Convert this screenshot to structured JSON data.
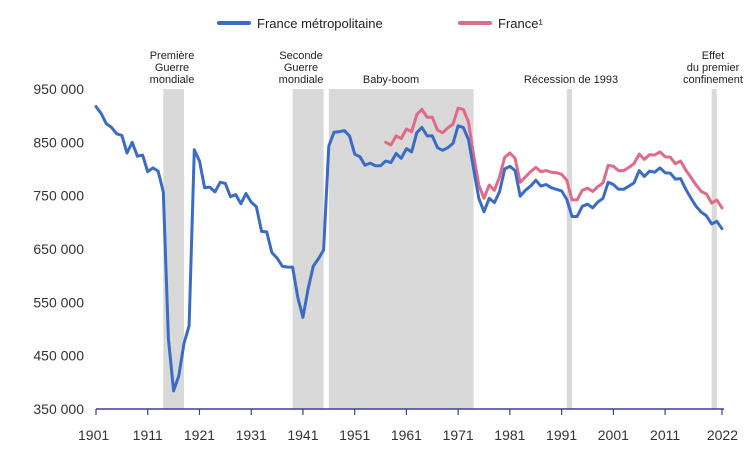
{
  "chart_data": {
    "type": "line",
    "title": "",
    "xlabel": "",
    "ylabel": "",
    "xlim": [
      1901,
      2022
    ],
    "ylim": [
      350000,
      950000
    ],
    "y_ticks": [
      350000,
      450000,
      550000,
      650000,
      750000,
      850000,
      950000
    ],
    "y_tick_labels": [
      "350 000",
      "450 000",
      "550 000",
      "650 000",
      "750 000",
      "850 000",
      "950 000"
    ],
    "x_ticks": [
      1901,
      1911,
      1921,
      1931,
      1941,
      1951,
      1961,
      1971,
      1981,
      1991,
      2001,
      2011,
      2022
    ],
    "x_tick_labels": [
      "1901",
      "1911",
      "1921",
      "1931",
      "1941",
      "1951",
      "1961",
      "1971",
      "1981",
      "1991",
      "2001",
      "2011",
      "2022"
    ],
    "grid": false,
    "legend_position": "top-center",
    "colors": {
      "metro": "#3a6cc6",
      "france": "#e06a87",
      "band": "#d9d9d9",
      "axis": "#3f3f8f"
    },
    "bands": [
      {
        "start": 1914,
        "end": 1918,
        "label_lines": [
          "Première",
          "Guerre",
          "mondiale"
        ]
      },
      {
        "start": 1939,
        "end": 1945,
        "label_lines": [
          "Seconde",
          "Guerre",
          "mondiale"
        ]
      },
      {
        "start": 1946,
        "end": 1974,
        "label_lines": [
          "Baby-boom"
        ]
      },
      {
        "start": 1992,
        "end": 1993,
        "label_lines": [
          "Récession de 1993"
        ]
      },
      {
        "start": 2020,
        "end": 2021,
        "label_lines": [
          "Effet",
          "du premier",
          "confinement"
        ]
      }
    ],
    "series": [
      {
        "name": "France métropolitaine",
        "x": [
          1901,
          1902,
          1903,
          1904,
          1905,
          1906,
          1907,
          1908,
          1909,
          1910,
          1911,
          1912,
          1913,
          1914,
          1915,
          1916,
          1917,
          1918,
          1919,
          1920,
          1921,
          1922,
          1923,
          1924,
          1925,
          1926,
          1927,
          1928,
          1929,
          1930,
          1931,
          1932,
          1933,
          1934,
          1935,
          1936,
          1937,
          1938,
          1939,
          1940,
          1941,
          1942,
          1943,
          1944,
          1945,
          1946,
          1947,
          1948,
          1949,
          1950,
          1951,
          1952,
          1953,
          1954,
          1955,
          1956,
          1957,
          1958,
          1959,
          1960,
          1961,
          1962,
          1963,
          1964,
          1965,
          1966,
          1967,
          1968,
          1969,
          1970,
          1971,
          1972,
          1973,
          1974,
          1975,
          1976,
          1977,
          1978,
          1979,
          1980,
          1981,
          1982,
          1983,
          1984,
          1985,
          1986,
          1987,
          1988,
          1989,
          1990,
          1991,
          1992,
          1993,
          1994,
          1995,
          1996,
          1997,
          1998,
          1999,
          2000,
          2001,
          2002,
          2003,
          2004,
          2005,
          2006,
          2007,
          2008,
          2009,
          2010,
          2011,
          2012,
          2013,
          2014,
          2015,
          2016,
          2017,
          2018,
          2019,
          2020,
          2021,
          2022
        ],
        "values": [
          917000,
          904000,
          885000,
          878000,
          866000,
          863000,
          830000,
          850000,
          824000,
          826000,
          795000,
          802000,
          796000,
          757000,
          482000,
          384000,
          412000,
          473000,
          506000,
          836000,
          815000,
          765000,
          766000,
          757000,
          775000,
          773000,
          748000,
          752000,
          735000,
          754000,
          738000,
          729000,
          683000,
          682000,
          643000,
          633000,
          618000,
          616000,
          616000,
          559000,
          522000,
          575000,
          618000,
          632000,
          648000,
          843000,
          869000,
          870000,
          872000,
          862000,
          828000,
          823000,
          807000,
          811000,
          806000,
          806000,
          815000,
          812000,
          829000,
          820000,
          838000,
          832000,
          868000,
          878000,
          862000,
          862000,
          840000,
          835000,
          840000,
          848000,
          881000,
          878000,
          855000,
          799000,
          745000,
          720000,
          745000,
          737000,
          757000,
          800000,
          805000,
          797000,
          749000,
          760000,
          768000,
          779000,
          768000,
          771000,
          765000,
          762000,
          759000,
          743000,
          711000,
          711000,
          730000,
          734000,
          727000,
          738000,
          745000,
          775000,
          771000,
          762000,
          762000,
          768000,
          774000,
          797000,
          786000,
          796000,
          794000,
          802000,
          793000,
          792000,
          781000,
          782000,
          762000,
          745000,
          730000,
          719000,
          712000,
          697000,
          702000,
          688000
        ]
      },
      {
        "name": "France¹",
        "x": [
          1957,
          1958,
          1959,
          1960,
          1961,
          1962,
          1963,
          1964,
          1965,
          1966,
          1967,
          1968,
          1969,
          1970,
          1971,
          1972,
          1973,
          1974,
          1975,
          1976,
          1977,
          1978,
          1979,
          1980,
          1981,
          1982,
          1983,
          1984,
          1985,
          1986,
          1987,
          1988,
          1989,
          1990,
          1991,
          1992,
          1993,
          1994,
          1995,
          1996,
          1997,
          1998,
          1999,
          2000,
          2001,
          2002,
          2003,
          2004,
          2005,
          2006,
          2007,
          2008,
          2009,
          2010,
          2011,
          2012,
          2013,
          2014,
          2015,
          2016,
          2017,
          2018,
          2019,
          2020,
          2021,
          2022
        ],
        "values": [
          850000,
          845000,
          862000,
          857000,
          875000,
          870000,
          902000,
          912000,
          897000,
          897000,
          873000,
          868000,
          877000,
          884000,
          914000,
          912000,
          888000,
          825000,
          770000,
          745000,
          770000,
          760000,
          785000,
          822000,
          830000,
          820000,
          775000,
          785000,
          795000,
          803000,
          795000,
          797000,
          794000,
          793000,
          790000,
          779000,
          742000,
          742000,
          760000,
          764000,
          758000,
          767000,
          774000,
          807000,
          805000,
          797000,
          797000,
          803000,
          810000,
          828000,
          818000,
          827000,
          826000,
          832000,
          823000,
          822000,
          810000,
          815000,
          798000,
          784000,
          770000,
          758000,
          753000,
          736000,
          742000,
          727000
        ]
      }
    ]
  }
}
